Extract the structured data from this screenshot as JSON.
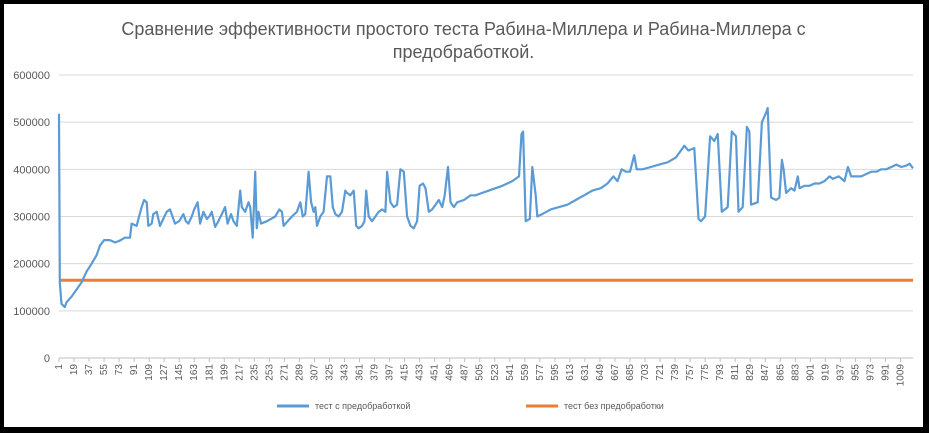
{
  "chart_data": {
    "type": "line",
    "title_lines": [
      "Сравнение эффективности простого теста Рабина-Миллера и Рабина-Миллера с",
      "предобработкой."
    ],
    "xlabel": "",
    "ylabel": "",
    "ylim": [
      0,
      600000
    ],
    "yticks": [
      0,
      100000,
      200000,
      300000,
      400000,
      500000,
      600000
    ],
    "ytick_labels": [
      "0",
      "100000",
      "200000",
      "300000",
      "400000",
      "500000",
      "600000"
    ],
    "x_range": [
      1,
      1024
    ],
    "xtick_labels": [
      "1",
      "19",
      "37",
      "55",
      "73",
      "91",
      "109",
      "127",
      "145",
      "163",
      "181",
      "199",
      "217",
      "235",
      "253",
      "271",
      "289",
      "307",
      "325",
      "343",
      "361",
      "379",
      "397",
      "415",
      "433",
      "451",
      "469",
      "487",
      "505",
      "523",
      "541",
      "559",
      "577",
      "595",
      "613",
      "631",
      "649",
      "667",
      "685",
      "703",
      "721",
      "739",
      "757",
      "775",
      "793",
      "811",
      "829",
      "847",
      "865",
      "883",
      "901",
      "919",
      "937",
      "955",
      "973",
      "991",
      "1009"
    ],
    "grid": "horizontal",
    "legend_position": "bottom",
    "series": [
      {
        "name": "тест с предобработкой",
        "color": "#5B9BD5",
        "points": [
          [
            1,
            518000
          ],
          [
            2,
            160000
          ],
          [
            4,
            115000
          ],
          [
            8,
            108000
          ],
          [
            10,
            118000
          ],
          [
            16,
            130000
          ],
          [
            22,
            145000
          ],
          [
            28,
            160000
          ],
          [
            34,
            183000
          ],
          [
            40,
            200000
          ],
          [
            46,
            218000
          ],
          [
            50,
            238000
          ],
          [
            55,
            250000
          ],
          [
            62,
            250000
          ],
          [
            68,
            245000
          ],
          [
            73,
            248000
          ],
          [
            80,
            255000
          ],
          [
            86,
            255000
          ],
          [
            88,
            285000
          ],
          [
            94,
            280000
          ],
          [
            97,
            300000
          ],
          [
            100,
            320000
          ],
          [
            103,
            335000
          ],
          [
            106,
            330000
          ],
          [
            108,
            280000
          ],
          [
            112,
            285000
          ],
          [
            114,
            305000
          ],
          [
            118,
            310000
          ],
          [
            122,
            280000
          ],
          [
            126,
            295000
          ],
          [
            130,
            310000
          ],
          [
            134,
            315000
          ],
          [
            137,
            300000
          ],
          [
            140,
            285000
          ],
          [
            145,
            290000
          ],
          [
            150,
            305000
          ],
          [
            153,
            290000
          ],
          [
            156,
            285000
          ],
          [
            160,
            300000
          ],
          [
            163,
            315000
          ],
          [
            167,
            330000
          ],
          [
            170,
            285000
          ],
          [
            174,
            310000
          ],
          [
            178,
            295000
          ],
          [
            181,
            300000
          ],
          [
            184,
            310000
          ],
          [
            188,
            278000
          ],
          [
            192,
            290000
          ],
          [
            196,
            305000
          ],
          [
            200,
            320000
          ],
          [
            203,
            285000
          ],
          [
            207,
            305000
          ],
          [
            210,
            290000
          ],
          [
            214,
            280000
          ],
          [
            218,
            355000
          ],
          [
            220,
            320000
          ],
          [
            224,
            310000
          ],
          [
            228,
            330000
          ],
          [
            230,
            320000
          ],
          [
            233,
            255000
          ],
          [
            236,
            395000
          ],
          [
            238,
            275000
          ],
          [
            240,
            310000
          ],
          [
            243,
            285000
          ],
          [
            250,
            290000
          ],
          [
            255,
            295000
          ],
          [
            260,
            300000
          ],
          [
            265,
            315000
          ],
          [
            268,
            310000
          ],
          [
            270,
            280000
          ],
          [
            275,
            290000
          ],
          [
            280,
            300000
          ],
          [
            286,
            310000
          ],
          [
            290,
            330000
          ],
          [
            293,
            300000
          ],
          [
            296,
            305000
          ],
          [
            300,
            395000
          ],
          [
            303,
            330000
          ],
          [
            306,
            310000
          ],
          [
            308,
            320000
          ],
          [
            310,
            280000
          ],
          [
            314,
            300000
          ],
          [
            318,
            310000
          ],
          [
            322,
            385000
          ],
          [
            326,
            385000
          ],
          [
            329,
            320000
          ],
          [
            332,
            305000
          ],
          [
            336,
            300000
          ],
          [
            340,
            310000
          ],
          [
            344,
            355000
          ],
          [
            346,
            350000
          ],
          [
            350,
            345000
          ],
          [
            354,
            355000
          ],
          [
            357,
            280000
          ],
          [
            360,
            275000
          ],
          [
            364,
            280000
          ],
          [
            367,
            290000
          ],
          [
            369,
            355000
          ],
          [
            372,
            300000
          ],
          [
            376,
            290000
          ],
          [
            380,
            300000
          ],
          [
            384,
            310000
          ],
          [
            388,
            315000
          ],
          [
            392,
            310000
          ],
          [
            394,
            395000
          ],
          [
            398,
            330000
          ],
          [
            402,
            320000
          ],
          [
            406,
            325000
          ],
          [
            410,
            400000
          ],
          [
            414,
            395000
          ],
          [
            418,
            300000
          ],
          [
            422,
            280000
          ],
          [
            426,
            275000
          ],
          [
            430,
            290000
          ],
          [
            433,
            365000
          ],
          [
            437,
            370000
          ],
          [
            440,
            360000
          ],
          [
            444,
            310000
          ],
          [
            448,
            315000
          ],
          [
            452,
            325000
          ],
          [
            456,
            335000
          ],
          [
            460,
            320000
          ],
          [
            463,
            345000
          ],
          [
            467,
            405000
          ],
          [
            470,
            330000
          ],
          [
            474,
            320000
          ],
          [
            478,
            330000
          ],
          [
            486,
            335000
          ],
          [
            494,
            345000
          ],
          [
            500,
            345000
          ],
          [
            508,
            350000
          ],
          [
            516,
            355000
          ],
          [
            524,
            360000
          ],
          [
            532,
            365000
          ],
          [
            538,
            370000
          ],
          [
            544,
            375000
          ],
          [
            552,
            385000
          ],
          [
            555,
            475000
          ],
          [
            557,
            480000
          ],
          [
            560,
            290000
          ],
          [
            565,
            295000
          ],
          [
            568,
            405000
          ],
          [
            572,
            345000
          ],
          [
            574,
            300000
          ],
          [
            580,
            305000
          ],
          [
            590,
            315000
          ],
          [
            600,
            320000
          ],
          [
            610,
            325000
          ],
          [
            620,
            335000
          ],
          [
            630,
            345000
          ],
          [
            640,
            355000
          ],
          [
            650,
            360000
          ],
          [
            658,
            370000
          ],
          [
            665,
            385000
          ],
          [
            670,
            375000
          ],
          [
            675,
            400000
          ],
          [
            680,
            395000
          ],
          [
            685,
            395000
          ],
          [
            690,
            430000
          ],
          [
            693,
            400000
          ],
          [
            700,
            400000
          ],
          [
            710,
            405000
          ],
          [
            720,
            410000
          ],
          [
            730,
            415000
          ],
          [
            740,
            425000
          ],
          [
            750,
            450000
          ],
          [
            755,
            440000
          ],
          [
            762,
            445000
          ],
          [
            767,
            295000
          ],
          [
            770,
            290000
          ],
          [
            775,
            300000
          ],
          [
            781,
            470000
          ],
          [
            786,
            460000
          ],
          [
            790,
            475000
          ],
          [
            795,
            310000
          ],
          [
            802,
            320000
          ],
          [
            807,
            480000
          ],
          [
            812,
            470000
          ],
          [
            815,
            310000
          ],
          [
            820,
            320000
          ],
          [
            825,
            490000
          ],
          [
            828,
            480000
          ],
          [
            830,
            325000
          ],
          [
            838,
            330000
          ],
          [
            843,
            500000
          ],
          [
            848,
            520000
          ],
          [
            850,
            530000
          ],
          [
            854,
            340000
          ],
          [
            860,
            335000
          ],
          [
            864,
            340000
          ],
          [
            867,
            420000
          ],
          [
            869,
            400000
          ],
          [
            872,
            350000
          ],
          [
            878,
            360000
          ],
          [
            882,
            355000
          ],
          [
            886,
            385000
          ],
          [
            888,
            360000
          ],
          [
            894,
            365000
          ],
          [
            900,
            365000
          ],
          [
            906,
            370000
          ],
          [
            912,
            370000
          ],
          [
            918,
            375000
          ],
          [
            924,
            385000
          ],
          [
            928,
            380000
          ],
          [
            935,
            385000
          ],
          [
            942,
            375000
          ],
          [
            946,
            405000
          ],
          [
            950,
            385000
          ],
          [
            956,
            385000
          ],
          [
            962,
            385000
          ],
          [
            968,
            390000
          ],
          [
            974,
            395000
          ],
          [
            980,
            395000
          ],
          [
            986,
            400000
          ],
          [
            992,
            400000
          ],
          [
            998,
            405000
          ],
          [
            1004,
            410000
          ],
          [
            1010,
            405000
          ],
          [
            1016,
            408000
          ],
          [
            1020,
            412000
          ],
          [
            1024,
            402000
          ]
        ]
      },
      {
        "name": "тест без предобработки",
        "color": "#ED7D31",
        "points": [
          [
            1,
            165000
          ],
          [
            1024,
            165000
          ]
        ]
      }
    ]
  }
}
